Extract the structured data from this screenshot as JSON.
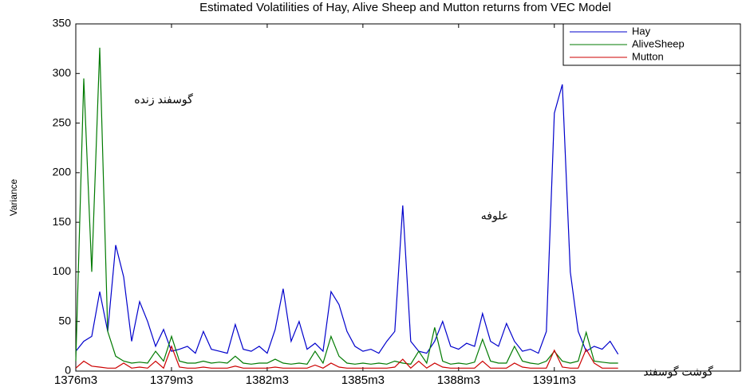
{
  "chart_data": {
    "type": "line",
    "title": "Estimated Volatilities of Hay, Alive Sheep and Mutton returns from VEC Model",
    "y_label": "Variance",
    "annotations": [
      "گوسفند زنده",
      "علوفه",
      "گوشت گوسفند"
    ],
    "x": [
      0,
      3,
      6,
      9,
      12,
      15,
      18,
      21,
      24,
      27,
      30,
      33,
      36,
      39,
      42,
      45,
      48,
      51,
      54,
      57,
      60,
      63,
      66,
      69,
      72,
      75,
      78,
      81,
      84,
      87,
      90,
      93,
      96,
      99,
      102,
      105,
      108,
      111,
      114,
      117,
      120,
      123,
      126,
      129,
      132,
      135,
      138,
      141,
      144,
      147,
      150,
      153,
      156,
      159,
      162,
      165,
      168,
      171,
      174,
      177,
      180,
      183,
      186,
      189,
      192,
      195,
      198,
      201,
      204
    ],
    "xlim": [
      0,
      250
    ],
    "xticks": [
      {
        "value": 0,
        "label": "1376m3"
      },
      {
        "value": 36,
        "label": "1379m3"
      },
      {
        "value": 72,
        "label": "1382m3"
      },
      {
        "value": 108,
        "label": "1385m3"
      },
      {
        "value": 144,
        "label": "1388m3"
      },
      {
        "value": 180,
        "label": "1391m3"
      }
    ],
    "ylim": [
      0,
      350
    ],
    "yticks": [
      0,
      50,
      100,
      150,
      200,
      250,
      300,
      350
    ],
    "grid": false,
    "legend": "upper right",
    "series": [
      {
        "name": "Hay",
        "color": "#0000cc",
        "values": [
          20,
          30,
          35,
          80,
          40,
          127,
          95,
          30,
          70,
          50,
          25,
          42,
          20,
          22,
          25,
          18,
          40,
          22,
          20,
          18,
          47,
          22,
          20,
          25,
          18,
          42,
          83,
          30,
          50,
          22,
          28,
          20,
          80,
          67,
          40,
          25,
          20,
          22,
          18,
          30,
          40,
          167,
          30,
          20,
          18,
          30,
          50,
          25,
          22,
          28,
          25,
          58,
          30,
          25,
          48,
          30,
          20,
          22,
          18,
          40,
          260,
          289,
          100,
          40,
          20,
          25,
          22,
          30,
          17
        ]
      },
      {
        "name": "AliveSheep",
        "color": "#007a00",
        "values": [
          10,
          295,
          100,
          326,
          40,
          15,
          10,
          8,
          9,
          8,
          20,
          10,
          35,
          10,
          8,
          8,
          10,
          8,
          9,
          8,
          15,
          8,
          7,
          8,
          8,
          12,
          8,
          7,
          8,
          7,
          20,
          8,
          35,
          15,
          8,
          7,
          8,
          7,
          8,
          7,
          10,
          8,
          7,
          20,
          8,
          44,
          10,
          7,
          8,
          7,
          9,
          32,
          10,
          8,
          8,
          25,
          10,
          8,
          7,
          10,
          20,
          10,
          8,
          10,
          39,
          10,
          9,
          8,
          8
        ]
      },
      {
        "name": "Mutton",
        "color": "#cc0000",
        "values": [
          3,
          10,
          5,
          4,
          3,
          3,
          8,
          3,
          4,
          3,
          10,
          3,
          25,
          4,
          3,
          3,
          4,
          3,
          3,
          3,
          5,
          3,
          3,
          3,
          3,
          4,
          3,
          3,
          3,
          3,
          6,
          3,
          8,
          4,
          3,
          3,
          3,
          3,
          3,
          3,
          4,
          12,
          3,
          10,
          3,
          8,
          4,
          3,
          3,
          3,
          3,
          10,
          3,
          3,
          3,
          8,
          4,
          3,
          3,
          3,
          21,
          4,
          3,
          3,
          22,
          8,
          3,
          3,
          3
        ]
      }
    ]
  }
}
